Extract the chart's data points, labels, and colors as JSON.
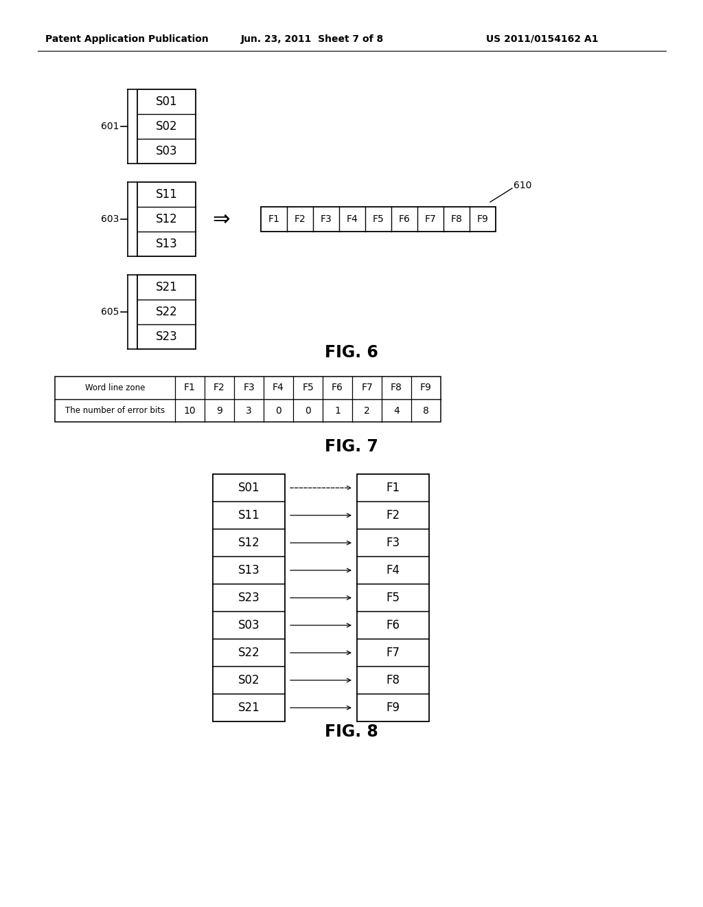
{
  "header_text": "Patent Application Publication",
  "header_date": "Jun. 23, 2011  Sheet 7 of 8",
  "header_patent": "US 2011/0154162 A1",
  "bg_color": "#ffffff",
  "fig6": {
    "label": "FIG. 6",
    "groups": [
      {
        "id": "601",
        "cells": [
          "S01",
          "S02",
          "S03"
        ]
      },
      {
        "id": "603",
        "cells": [
          "S11",
          "S12",
          "S13"
        ]
      },
      {
        "id": "605",
        "cells": [
          "S21",
          "S22",
          "S23"
        ]
      }
    ],
    "output_label": "610",
    "output_cells": [
      "F1",
      "F2",
      "F3",
      "F4",
      "F5",
      "F6",
      "F7",
      "F8",
      "F9"
    ]
  },
  "fig7": {
    "label": "FIG. 7",
    "table_rows": [
      [
        "Word line zone",
        "F1",
        "F2",
        "F3",
        "F4",
        "F5",
        "F6",
        "F7",
        "F8",
        "F9"
      ],
      [
        "The number of error bits",
        "10",
        "9",
        "3",
        "0",
        "0",
        "1",
        "2",
        "4",
        "8"
      ]
    ]
  },
  "fig8": {
    "label": "FIG. 8",
    "left_cells": [
      "S01",
      "S11",
      "S12",
      "S13",
      "S23",
      "S03",
      "S22",
      "S02",
      "S21"
    ],
    "right_cells": [
      "F1",
      "F2",
      "F3",
      "F4",
      "F5",
      "F6",
      "F7",
      "F8",
      "F9"
    ]
  }
}
